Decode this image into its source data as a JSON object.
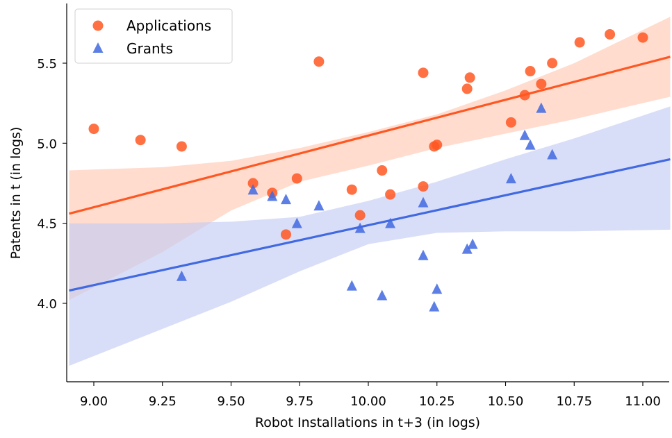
{
  "chart_data": {
    "type": "scatter",
    "title": "",
    "xlabel": "Robot Installations in t+3 (in logs)",
    "ylabel": "Patents in t (in logs)",
    "xlim": [
      8.91,
      11.1
    ],
    "ylim": [
      3.5,
      5.8
    ],
    "xticks": [
      9.0,
      9.25,
      9.5,
      9.75,
      10.0,
      10.25,
      10.5,
      10.75,
      11.0
    ],
    "xtick_labels": [
      "9.00",
      "9.25",
      "9.50",
      "9.75",
      "10.00",
      "10.25",
      "10.50",
      "10.75",
      "11.00"
    ],
    "yticks": [
      4.0,
      4.5,
      5.0,
      5.5
    ],
    "ytick_labels": [
      "4.0",
      "4.5",
      "5.0",
      "5.5"
    ],
    "grid": false,
    "legend_position": "top-left",
    "series": [
      {
        "name": "Applications",
        "marker": "circle",
        "color": "#ff5722",
        "x": [
          9.0,
          9.17,
          9.32,
          9.58,
          9.65,
          9.7,
          9.74,
          9.82,
          9.94,
          9.97,
          10.05,
          10.08,
          10.2,
          10.2,
          10.24,
          10.25,
          10.36,
          10.37,
          10.52,
          10.57,
          10.59,
          10.63,
          10.67,
          10.77,
          10.88,
          11.0
        ],
        "y": [
          5.09,
          5.02,
          4.98,
          4.75,
          4.69,
          4.43,
          4.78,
          5.51,
          4.71,
          4.55,
          4.83,
          4.68,
          4.73,
          5.44,
          4.98,
          4.99,
          5.34,
          5.41,
          5.13,
          5.3,
          5.45,
          5.37,
          5.5,
          5.63,
          5.68,
          5.66
        ],
        "fit": {
          "x": [
            8.91,
            11.1
          ],
          "y": [
            4.56,
            5.54
          ]
        },
        "ci_band": {
          "x": [
            8.91,
            9.25,
            9.5,
            9.75,
            10.0,
            10.25,
            10.5,
            10.75,
            11.1
          ],
          "upper": [
            4.83,
            4.85,
            4.89,
            4.97,
            5.07,
            5.18,
            5.33,
            5.5,
            5.79
          ],
          "lower": [
            4.02,
            4.32,
            4.58,
            4.76,
            4.86,
            4.97,
            5.06,
            5.15,
            5.29
          ]
        }
      },
      {
        "name": "Grants",
        "marker": "triangle",
        "color": "#4169e1",
        "x": [
          9.32,
          9.58,
          9.65,
          9.7,
          9.74,
          9.82,
          9.94,
          9.97,
          10.05,
          10.08,
          10.2,
          10.2,
          10.24,
          10.25,
          10.36,
          10.38,
          10.52,
          10.57,
          10.59,
          10.63,
          10.67
        ],
        "y": [
          4.17,
          4.71,
          4.67,
          4.65,
          4.5,
          4.61,
          4.11,
          4.47,
          4.05,
          4.5,
          4.3,
          4.63,
          3.98,
          4.09,
          4.34,
          4.37,
          4.78,
          5.05,
          4.99,
          5.22,
          4.93
        ],
        "fit": {
          "x": [
            8.91,
            11.1
          ],
          "y": [
            4.08,
            4.9
          ]
        },
        "ci_band": {
          "x": [
            8.91,
            9.25,
            9.5,
            9.75,
            10.0,
            10.25,
            10.5,
            10.75,
            11.1
          ],
          "upper": [
            4.5,
            4.5,
            4.51,
            4.54,
            4.64,
            4.76,
            4.9,
            5.03,
            5.23
          ],
          "lower": [
            3.61,
            3.84,
            4.01,
            4.2,
            4.37,
            4.44,
            4.45,
            4.45,
            4.46
          ]
        }
      }
    ]
  }
}
